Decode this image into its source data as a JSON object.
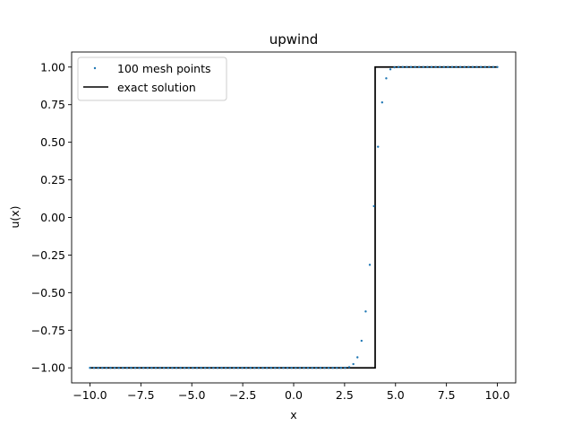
{
  "chart_data": {
    "type": "line",
    "title": "upwind",
    "xlabel": "x",
    "ylabel": "u(x)",
    "xlim": [
      -10.9,
      10.9
    ],
    "ylim": [
      -1.1,
      1.1
    ],
    "xticks": [
      -10.0,
      -7.5,
      -5.0,
      -2.5,
      0.0,
      2.5,
      5.0,
      7.5,
      10.0
    ],
    "xtick_labels": [
      "−10.0",
      "−7.5",
      "−5.0",
      "−2.5",
      "0.0",
      "2.5",
      "5.0",
      "7.5",
      "10.0"
    ],
    "yticks": [
      -1.0,
      -0.75,
      -0.5,
      -0.25,
      0.0,
      0.25,
      0.5,
      0.75,
      1.0
    ],
    "ytick_labels": [
      "−1.00",
      "−0.75",
      "−0.50",
      "−0.25",
      "0.00",
      "0.25",
      "0.50",
      "0.75",
      "1.00"
    ],
    "grid": false,
    "legend_position": "top-left",
    "series": [
      {
        "name": "100 mesh points",
        "kind": "scatter",
        "color": "#1f77b4",
        "points": [
          [
            2.73,
            -0.995
          ],
          [
            2.93,
            -0.975
          ],
          [
            3.13,
            -0.93
          ],
          [
            3.33,
            -0.82
          ],
          [
            3.54,
            -0.625
          ],
          [
            3.74,
            -0.315
          ],
          [
            3.94,
            0.075
          ],
          [
            4.14,
            0.47
          ],
          [
            4.34,
            0.765
          ],
          [
            4.55,
            0.925
          ],
          [
            4.75,
            0.985
          ],
          [
            4.95,
            0.998
          ]
        ],
        "sampling": {
          "x_start": -10.0,
          "x_end": 10.0,
          "count": 100,
          "left_value": -1.0,
          "right_value": 1.0
        }
      },
      {
        "name": "exact solution",
        "kind": "line",
        "color": "#000000",
        "points": [
          [
            -10.0,
            -1.0
          ],
          [
            4.0,
            -1.0
          ],
          [
            4.0,
            1.0
          ],
          [
            10.0,
            1.0
          ]
        ]
      }
    ]
  }
}
